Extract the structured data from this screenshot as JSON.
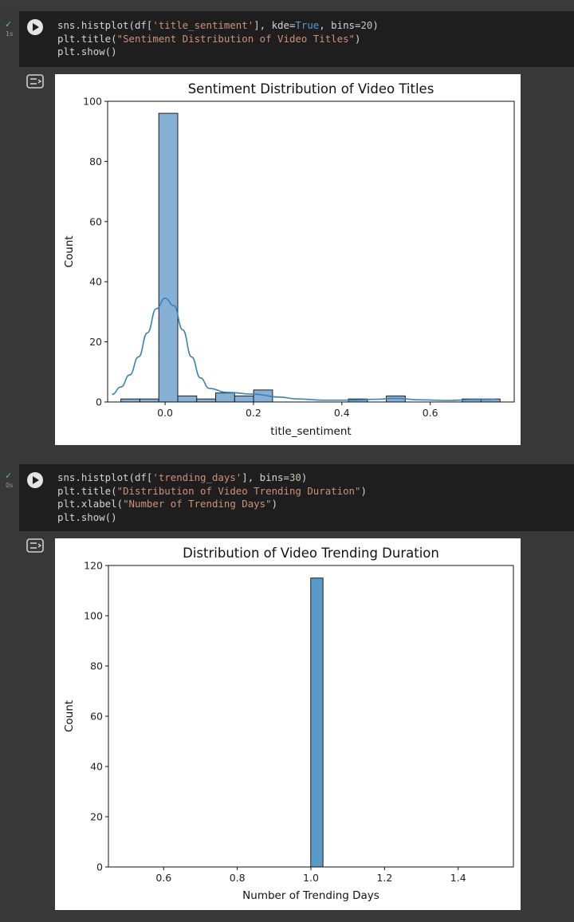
{
  "cells": [
    {
      "status_icon": "check-icon",
      "exec_time": "1s",
      "code_lines": [
        [
          {
            "t": "sns.histplot(df["
          },
          {
            "t": "'title_sentiment'",
            "c": "str"
          },
          {
            "t": "], kde="
          },
          {
            "t": "True",
            "c": "kw"
          },
          {
            "t": ", bins="
          },
          {
            "t": "20",
            "c": "num"
          },
          {
            "t": ")"
          }
        ],
        [
          {
            "t": "plt.title("
          },
          {
            "t": "\"Sentiment Distribution of Video Titles\"",
            "c": "str"
          },
          {
            "t": ")"
          }
        ],
        [
          {
            "t": "plt.show()"
          }
        ]
      ]
    },
    {
      "status_icon": "check-icon",
      "exec_time": "0s",
      "code_lines": [
        [
          {
            "t": "sns.histplot(df["
          },
          {
            "t": "'trending_days'",
            "c": "str"
          },
          {
            "t": "], bins="
          },
          {
            "t": "30",
            "c": "num"
          },
          {
            "t": ")"
          }
        ],
        [
          {
            "t": "plt.title("
          },
          {
            "t": "\"Distribution of Video Trending Duration\"",
            "c": "str"
          },
          {
            "t": ")"
          }
        ],
        [
          {
            "t": "plt.xlabel("
          },
          {
            "t": "\"Number of Trending Days\"",
            "c": "str"
          },
          {
            "t": ")"
          }
        ],
        [
          {
            "t": "plt.show()"
          }
        ]
      ]
    }
  ],
  "colors": {
    "cell_bg": "#1e1e1e",
    "page_bg": "#383838",
    "bar_fill": "#87b0d6",
    "bar_fill_solid": "#5a9acb",
    "bar_edge": "#1f1f1f",
    "kde_line": "#3a82b8",
    "check": "#5cc58a"
  },
  "chart_data": [
    {
      "type": "bar",
      "title": "Sentiment Distribution of Video Titles",
      "xlabel": "title_sentiment",
      "ylabel": "Count",
      "xlim": [
        -0.13,
        0.79
      ],
      "ylim": [
        0,
        100
      ],
      "xticks": [
        0.0,
        0.2,
        0.4,
        0.6
      ],
      "xtick_labels": [
        "0.0",
        "0.2",
        "0.4",
        "0.6"
      ],
      "yticks": [
        0,
        20,
        40,
        60,
        80,
        100
      ],
      "ytick_labels": [
        "0",
        "20",
        "40",
        "60",
        "80",
        "100"
      ],
      "bins": 20,
      "bin_start": -0.1,
      "bin_width": 0.0429,
      "values": [
        1,
        1,
        96,
        2,
        1,
        3,
        2,
        4,
        0,
        0,
        0,
        0,
        1,
        0,
        2,
        0,
        0,
        0,
        1,
        1
      ],
      "kde": true,
      "kde_points": [
        [
          -0.12,
          2.5
        ],
        [
          -0.1,
          5
        ],
        [
          -0.08,
          9
        ],
        [
          -0.06,
          15
        ],
        [
          -0.04,
          23
        ],
        [
          -0.02,
          31
        ],
        [
          0.0,
          34.5
        ],
        [
          0.02,
          32
        ],
        [
          0.04,
          24
        ],
        [
          0.06,
          15
        ],
        [
          0.08,
          8
        ],
        [
          0.1,
          4.5
        ],
        [
          0.14,
          3.2
        ],
        [
          0.2,
          2.6
        ],
        [
          0.26,
          1.6
        ],
        [
          0.3,
          1
        ],
        [
          0.36,
          0.6
        ],
        [
          0.42,
          0.6
        ],
        [
          0.48,
          0.9
        ],
        [
          0.52,
          1.2
        ],
        [
          0.58,
          0.7
        ],
        [
          0.64,
          0.5
        ],
        [
          0.7,
          0.8
        ],
        [
          0.75,
          0.9
        ]
      ],
      "grid": false,
      "legend": "none"
    },
    {
      "type": "bar",
      "title": "Distribution of Video Trending Duration",
      "xlabel": "Number of Trending Days",
      "ylabel": "Count",
      "xlim": [
        0.45,
        1.55
      ],
      "ylim": [
        0,
        120
      ],
      "xticks": [
        0.6,
        0.8,
        1.0,
        1.2,
        1.4
      ],
      "xtick_labels": [
        "0.6",
        "0.8",
        "1.0",
        "1.2",
        "1.4"
      ],
      "yticks": [
        0,
        20,
        40,
        60,
        80,
        100,
        120
      ],
      "ytick_labels": [
        "0",
        "20",
        "40",
        "60",
        "80",
        "100",
        "120"
      ],
      "bins": 30,
      "bin_start": 0.5,
      "bin_width": 0.0333,
      "values": [
        0,
        0,
        0,
        0,
        0,
        0,
        0,
        0,
        0,
        0,
        0,
        0,
        0,
        0,
        0,
        115,
        0,
        0,
        0,
        0,
        0,
        0,
        0,
        0,
        0,
        0,
        0,
        0,
        0,
        0
      ],
      "kde": false,
      "grid": false,
      "legend": "none"
    }
  ]
}
